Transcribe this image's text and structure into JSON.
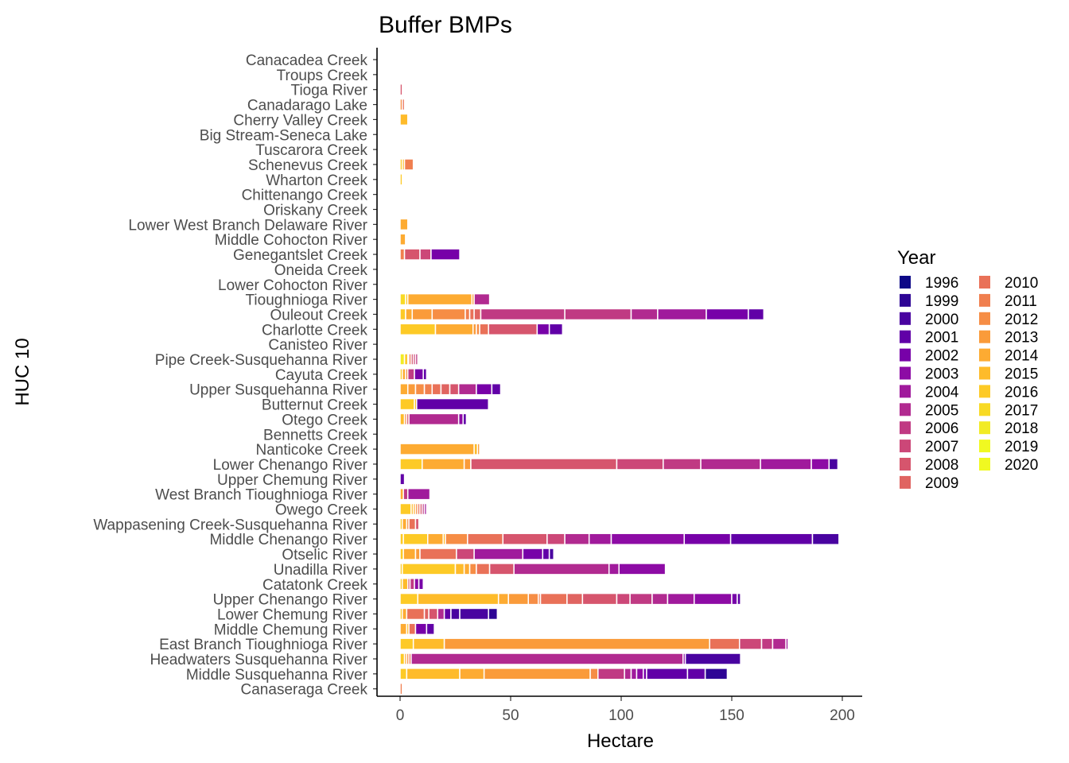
{
  "chart_data": {
    "type": "bar",
    "orientation": "horizontal",
    "stacked": true,
    "title": "Buffer BMPs",
    "xlabel": "Hectare",
    "ylabel": "HUC 10",
    "xlim": [
      -5,
      210
    ],
    "xticks": [
      0,
      50,
      100,
      150,
      200
    ],
    "grid": false,
    "legend": {
      "title": "Year",
      "position": "right"
    },
    "years": [
      "1996",
      "1999",
      "2000",
      "2001",
      "2002",
      "2003",
      "2004",
      "2005",
      "2006",
      "2007",
      "2008",
      "2009",
      "2010",
      "2011",
      "2012",
      "2013",
      "2014",
      "2015",
      "2016",
      "2017",
      "2018",
      "2019",
      "2020"
    ],
    "colors": {
      "1996": "#0D0887",
      "1999": "#2E0595",
      "2000": "#4903A0",
      "2001": "#6100A7",
      "2002": "#7701A8",
      "2003": "#8D0BA5",
      "2004": "#A01A9C",
      "2005": "#B12A90",
      "2006": "#C03A83",
      "2007": "#CC4778",
      "2008": "#D6556D",
      "2009": "#E06461",
      "2010": "#E97158",
      "2011": "#F07F4F",
      "2012": "#F68D45",
      "2013": "#FA9B3A",
      "2014": "#FDAB32",
      "2015": "#FEBB2A",
      "2016": "#FDCA26",
      "2017": "#F8DA24",
      "2018": "#F2EB24",
      "2019": "#F0F921",
      "2020": "#F0F921"
    },
    "categories": [
      "Canacadea Creek",
      "Troups Creek",
      "Tioga River",
      "Canadarago Lake",
      "Cherry Valley Creek",
      "Big Stream-Seneca Lake",
      "Tuscarora Creek",
      "Schenevus Creek",
      "Wharton Creek",
      "Chittenango Creek",
      "Oriskany Creek",
      "Lower West Branch Delaware River",
      "Middle Cohocton River",
      "Genegantslet Creek",
      "Oneida Creek",
      "Lower Cohocton River",
      "Tioughnioga River",
      "Ouleout Creek",
      "Charlotte Creek",
      "Canisteo River",
      "Pipe Creek-Susquehanna River",
      "Cayuta Creek",
      "Upper Susquehanna River",
      "Butternut Creek",
      "Otego Creek",
      "Bennetts Creek",
      "Nanticoke Creek",
      "Lower Chenango River",
      "Upper Chemung River",
      "West Branch Tioughnioga River",
      "Owego Creek",
      "Wappasening Creek-Susquehanna River",
      "Middle Chenango River",
      "Otselic River",
      "Unadilla River",
      "Catatonk Creek",
      "Upper Chenango River",
      "Lower Chemung River",
      "Middle Chemung River",
      "East Branch Tioughnioga River",
      "Headwaters Susquehanna River",
      "Middle Susquehanna River",
      "Canaseraga Creek"
    ],
    "bars": [
      [],
      [],
      [
        [
          1,
          "#D6556D"
        ]
      ],
      [
        [
          1,
          "#F68D45"
        ],
        [
          1,
          "#E97158"
        ]
      ],
      [
        [
          3.5,
          "#FEBB2A"
        ]
      ],
      [],
      [],
      [
        [
          1,
          "#FDCA26"
        ],
        [
          1,
          "#FEBB2A"
        ],
        [
          4,
          "#F07F4F"
        ]
      ],
      [
        [
          1,
          "#FDCA26"
        ]
      ],
      [],
      [],
      [
        [
          3.5,
          "#FDAB32"
        ]
      ],
      [
        [
          2.5,
          "#FDAB32"
        ],
        [
          0.5,
          "#FEBB2A"
        ]
      ],
      [
        [
          2,
          "#F07F4F"
        ],
        [
          7,
          "#D6556D"
        ],
        [
          5,
          "#CC4778"
        ],
        [
          13,
          "#7701A8"
        ]
      ],
      [],
      [],
      [
        [
          2.5,
          "#F8DA24"
        ],
        [
          1,
          "#FDCA26"
        ],
        [
          29,
          "#FDAB32"
        ],
        [
          1,
          "#FA9B3A"
        ],
        [
          7,
          "#B12A90"
        ]
      ],
      [
        [
          2.5,
          "#FDCA26"
        ],
        [
          3,
          "#FDAB32"
        ],
        [
          9,
          "#FA9B3A"
        ],
        [
          15,
          "#F68D45"
        ],
        [
          2,
          "#F07F4F"
        ],
        [
          2,
          "#E97158"
        ],
        [
          3,
          "#E06461"
        ],
        [
          38,
          "#C03A83"
        ],
        [
          30,
          "#C03A83"
        ],
        [
          12,
          "#B12A90"
        ],
        [
          22,
          "#A01A9C"
        ],
        [
          19,
          "#7701A8"
        ],
        [
          7,
          "#6100A7"
        ]
      ],
      [
        [
          16,
          "#FDCA26"
        ],
        [
          17,
          "#FDAB32"
        ],
        [
          1.5,
          "#FA9B3A"
        ],
        [
          1.5,
          "#F68D45"
        ],
        [
          4,
          "#E97158"
        ],
        [
          22,
          "#D6556D"
        ],
        [
          5.5,
          "#7701A8"
        ],
        [
          6,
          "#6100A7"
        ]
      ],
      [],
      [
        [
          2,
          "#F2EB24"
        ],
        [
          1.5,
          "#FDCA26"
        ],
        [
          0.5,
          "#F07F4F"
        ],
        [
          1,
          "#E97158"
        ],
        [
          1,
          "#D6556D"
        ],
        [
          1,
          "#CC4778"
        ],
        [
          1,
          "#C03A83"
        ],
        [
          0.5,
          "#B12A90"
        ],
        [
          0.5,
          "#A01A9C"
        ],
        [
          0.5,
          "#8D0BA5"
        ]
      ],
      [
        [
          1,
          "#FDCA26"
        ],
        [
          1.5,
          "#FDAB32"
        ],
        [
          1,
          "#F68D45"
        ],
        [
          3,
          "#C03A83"
        ],
        [
          4,
          "#7701A8"
        ],
        [
          1.5,
          "#6100A7"
        ]
      ],
      [
        [
          3.5,
          "#FDAB32"
        ],
        [
          3.5,
          "#FA9B3A"
        ],
        [
          4,
          "#F68D45"
        ],
        [
          3.5,
          "#F07F4F"
        ],
        [
          4,
          "#E97158"
        ],
        [
          4,
          "#E06461"
        ],
        [
          4,
          "#D6556D"
        ],
        [
          8,
          "#B12A90"
        ],
        [
          7,
          "#7701A8"
        ],
        [
          4,
          "#6100A7"
        ]
      ],
      [
        [
          6.5,
          "#FDCA26"
        ],
        [
          1,
          "#FEBB2A"
        ],
        [
          32.5,
          "#6100A7"
        ]
      ],
      [
        [
          2,
          "#FEBB2A"
        ],
        [
          1,
          "#F68D45"
        ],
        [
          1,
          "#D6556D"
        ],
        [
          22.5,
          "#B12A90"
        ],
        [
          2,
          "#8D0BA5"
        ],
        [
          1.5,
          "#6100A7"
        ]
      ],
      [],
      [
        [
          33.5,
          "#FDAB32"
        ],
        [
          1.5,
          "#FEBB2A"
        ],
        [
          1,
          "#FA9B3A"
        ]
      ],
      [
        [
          10,
          "#FDCA26"
        ],
        [
          19,
          "#FDAB32"
        ],
        [
          3,
          "#FA9B3A"
        ],
        [
          66,
          "#D6556D"
        ],
        [
          21,
          "#CC4778"
        ],
        [
          17,
          "#C03A83"
        ],
        [
          27,
          "#B12A90"
        ],
        [
          23,
          "#A01A9C"
        ],
        [
          8,
          "#8D0BA5"
        ],
        [
          4,
          "#4903A0"
        ]
      ],
      [
        [
          2,
          "#6100A7"
        ]
      ],
      [
        [
          1.5,
          "#FDAB32"
        ],
        [
          2,
          "#C03A83"
        ],
        [
          10,
          "#A01A9C"
        ]
      ],
      [
        [
          5,
          "#FDCA26"
        ],
        [
          1,
          "#FEBB2A"
        ],
        [
          1,
          "#FDAB32"
        ],
        [
          1,
          "#F68D45"
        ],
        [
          1,
          "#E97158"
        ],
        [
          1,
          "#D6556D"
        ],
        [
          1,
          "#C03A83"
        ],
        [
          1,
          "#A01A9C"
        ],
        [
          0.5,
          "#8D0BA5"
        ],
        [
          0.5,
          "#7701A8"
        ]
      ],
      [
        [
          1,
          "#FDCA26"
        ],
        [
          2,
          "#FDAB32"
        ],
        [
          1,
          "#F68D45"
        ],
        [
          3,
          "#E97158"
        ],
        [
          1.5,
          "#D6556D"
        ]
      ],
      [
        [
          1.5,
          "#FDCA26"
        ],
        [
          11,
          "#FDCA26"
        ],
        [
          7,
          "#FDAB32"
        ],
        [
          1,
          "#FEBB2A"
        ],
        [
          10,
          "#F68D45"
        ],
        [
          16,
          "#E97158"
        ],
        [
          20,
          "#D6556D"
        ],
        [
          8,
          "#CC4778"
        ],
        [
          11,
          "#B12A90"
        ],
        [
          10,
          "#A01A9C"
        ],
        [
          33,
          "#8D0BA5"
        ],
        [
          21,
          "#7701A8"
        ],
        [
          37,
          "#6100A7"
        ],
        [
          12,
          "#4903A0"
        ]
      ],
      [
        [
          1.5,
          "#FDCA26"
        ],
        [
          5.5,
          "#FDAB32"
        ],
        [
          2,
          "#FA9B3A"
        ],
        [
          16.5,
          "#E97158"
        ],
        [
          8,
          "#CC4778"
        ],
        [
          22,
          "#A01A9C"
        ],
        [
          9,
          "#7701A8"
        ],
        [
          3,
          "#6100A7"
        ],
        [
          2,
          "#4903A0"
        ]
      ],
      [
        [
          1,
          "#FDCA26"
        ],
        [
          24,
          "#FDCA26"
        ],
        [
          4,
          "#FEBB2A"
        ],
        [
          2.5,
          "#FDAB32"
        ],
        [
          3,
          "#F68D45"
        ],
        [
          6,
          "#E97158"
        ],
        [
          11,
          "#D6556D"
        ],
        [
          43,
          "#B12A90"
        ],
        [
          4.5,
          "#A01A9C"
        ],
        [
          21,
          "#8D0BA5"
        ]
      ],
      [
        [
          1,
          "#FDCA26"
        ],
        [
          2.5,
          "#FEBB2A"
        ],
        [
          1,
          "#D6556D"
        ],
        [
          2,
          "#C03A83"
        ],
        [
          2,
          "#8D0BA5"
        ],
        [
          2,
          "#7701A8"
        ]
      ],
      [
        [
          8,
          "#FDCA26"
        ],
        [
          36.5,
          "#FEBB2A"
        ],
        [
          4.5,
          "#FDAB32"
        ],
        [
          9,
          "#FA9B3A"
        ],
        [
          4.5,
          "#F68D45"
        ],
        [
          1,
          "#F07F4F"
        ],
        [
          12,
          "#E97158"
        ],
        [
          7,
          "#E06461"
        ],
        [
          15.5,
          "#D6556D"
        ],
        [
          6,
          "#CC4778"
        ],
        [
          10,
          "#C03A83"
        ],
        [
          7,
          "#B12A90"
        ],
        [
          12,
          "#A01A9C"
        ],
        [
          17,
          "#8D0BA5"
        ],
        [
          2.5,
          "#7701A8"
        ],
        [
          1.5,
          "#6100A7"
        ]
      ],
      [
        [
          1,
          "#FDCA26"
        ],
        [
          2,
          "#FDAB32"
        ],
        [
          8,
          "#E97158"
        ],
        [
          2,
          "#E06461"
        ],
        [
          4,
          "#D6556D"
        ],
        [
          3,
          "#B12A90"
        ],
        [
          3,
          "#6100A7"
        ],
        [
          4,
          "#4903A0"
        ],
        [
          13,
          "#4903A0"
        ],
        [
          4,
          "#2E0595"
        ]
      ],
      [
        [
          3,
          "#FDAB32"
        ],
        [
          1,
          "#FEBB2A"
        ],
        [
          3,
          "#E97158"
        ],
        [
          5,
          "#7701A8"
        ],
        [
          3.5,
          "#6100A7"
        ]
      ],
      [
        [
          6,
          "#FDCA26"
        ],
        [
          14,
          "#FEBB2A"
        ],
        [
          120,
          "#FA9B3A"
        ],
        [
          13.5,
          "#E97158"
        ],
        [
          10,
          "#CC4778"
        ],
        [
          5,
          "#C03A83"
        ],
        [
          6,
          "#B12A90"
        ],
        [
          1,
          "#A01A9C"
        ]
      ],
      [
        [
          2,
          "#FDCA26"
        ],
        [
          1,
          "#FDAB32"
        ],
        [
          1,
          "#F68D45"
        ],
        [
          1,
          "#E97158"
        ],
        [
          123,
          "#B12A90"
        ],
        [
          1,
          "#8D0BA5"
        ],
        [
          25,
          "#4903A0"
        ]
      ],
      [
        [
          3,
          "#FDCA26"
        ],
        [
          24,
          "#FEBB2A"
        ],
        [
          11,
          "#FDAB32"
        ],
        [
          48,
          "#FA9B3A"
        ],
        [
          3.5,
          "#F68D45"
        ],
        [
          12,
          "#C03A83"
        ],
        [
          3,
          "#B12A90"
        ],
        [
          2.5,
          "#A01A9C"
        ],
        [
          3,
          "#8D0BA5"
        ],
        [
          1.5,
          "#7701A8"
        ],
        [
          18.5,
          "#6100A7"
        ],
        [
          8,
          "#6100A7"
        ],
        [
          10,
          "#2E0595"
        ]
      ],
      [
        [
          1,
          "#F07F4F"
        ]
      ]
    ]
  }
}
